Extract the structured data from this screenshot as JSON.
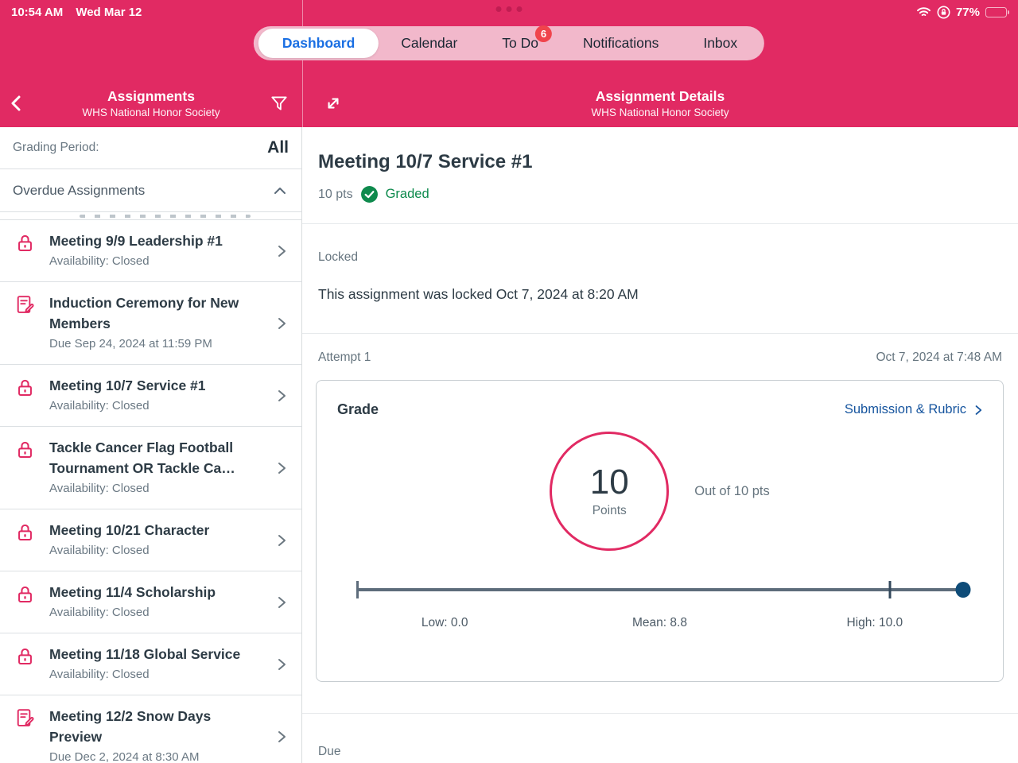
{
  "status_bar": {
    "time": "10:54 AM",
    "date": "Wed Mar 12",
    "battery": "77%"
  },
  "nav": {
    "items": [
      {
        "label": "Dashboard",
        "active": true
      },
      {
        "label": "Calendar",
        "active": false
      },
      {
        "label": "To Do",
        "active": false,
        "badge": "6"
      },
      {
        "label": "Notifications",
        "active": false
      },
      {
        "label": "Inbox",
        "active": false
      }
    ]
  },
  "left_header": {
    "title": "Assignments",
    "subtitle": "WHS National Honor Society"
  },
  "right_header": {
    "title": "Assignment Details",
    "subtitle": "WHS National Honor Society"
  },
  "filters": {
    "grading_period_label": "Grading Period:",
    "grading_period_value": "All"
  },
  "section": {
    "title": "Overdue Assignments"
  },
  "assignments": [
    {
      "icon": "lock",
      "title": "Meeting 9/9 Leadership #1",
      "subtitle": "Availability: Closed"
    },
    {
      "icon": "edit",
      "title": "Induction Ceremony for New Members",
      "subtitle": "Due Sep 24, 2024 at 11:59 PM"
    },
    {
      "icon": "lock",
      "title": "Meeting 10/7 Service #1",
      "subtitle": "Availability: Closed"
    },
    {
      "icon": "lock",
      "title": "Tackle Cancer Flag Football Tournament OR Tackle Ca…",
      "subtitle": "Availability: Closed"
    },
    {
      "icon": "lock",
      "title": "Meeting 10/21 Character",
      "subtitle": "Availability: Closed"
    },
    {
      "icon": "lock",
      "title": "Meeting 11/4 Scholarship",
      "subtitle": "Availability: Closed"
    },
    {
      "icon": "lock",
      "title": "Meeting 11/18 Global Service",
      "subtitle": "Availability: Closed"
    },
    {
      "icon": "edit",
      "title": "Meeting 12/2 Snow Days Preview",
      "subtitle": "Due Dec 2, 2024 at 8:30 AM"
    }
  ],
  "detail": {
    "title": "Meeting 10/7 Service #1",
    "points": "10 pts",
    "status": "Graded",
    "locked_label": "Locked",
    "locked_message": "This assignment was locked Oct 7, 2024 at 8:20 AM",
    "attempt_label": "Attempt 1",
    "attempt_date": "Oct 7, 2024 at 7:48 AM",
    "grade_card": {
      "title": "Grade",
      "link": "Submission & Rubric",
      "score": "10",
      "score_unit": "Points",
      "out_of": "Out of 10 pts",
      "stats": {
        "low": 0.0,
        "mean": 8.8,
        "high": 10.0,
        "score": 10,
        "low_label": "Low: 0.0",
        "mean_label": "Mean: 8.8",
        "high_label": "High: 10.0"
      }
    },
    "due_label": "Due"
  },
  "colors": {
    "primary_pink": "#E12A63",
    "nav_pill_bg": "#F2B8CB",
    "active_tab_blue": "#1A6FE3",
    "link_blue": "#15549E",
    "success_green": "#0E8A4D",
    "badge_red": "#F0444C",
    "score_navy": "#0E4C78"
  }
}
